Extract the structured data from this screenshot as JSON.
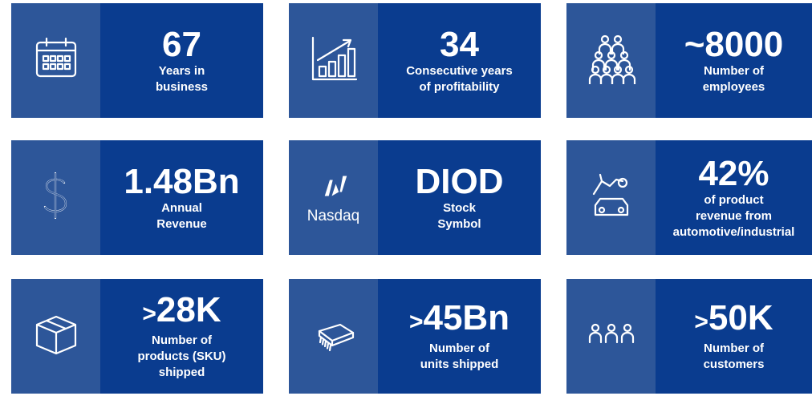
{
  "tiles": [
    {
      "value": "67",
      "label": [
        "Years in",
        "business"
      ]
    },
    {
      "value": "34",
      "label": [
        "Consecutive years",
        "of profitability"
      ]
    },
    {
      "value": "~8000",
      "label": [
        "Number of",
        "employees"
      ]
    },
    {
      "value": "1.48Bn",
      "label": [
        "Annual",
        "Revenue"
      ]
    },
    {
      "icon_text": "Nasdaq",
      "value": "DIOD",
      "label": [
        "Stock",
        "Symbol"
      ]
    },
    {
      "value": "42%",
      "label": [
        "of product",
        "revenue from",
        "automotive/industrial"
      ]
    },
    {
      "prefix": ">",
      "value": "28K",
      "label": [
        "Number of",
        "products (SKU)",
        "shipped"
      ]
    },
    {
      "prefix": ">",
      "value": "45Bn",
      "label": [
        "Number of",
        "units shipped"
      ]
    },
    {
      "prefix": ">",
      "value": "50K",
      "label": [
        "Number of",
        "customers"
      ]
    }
  ]
}
